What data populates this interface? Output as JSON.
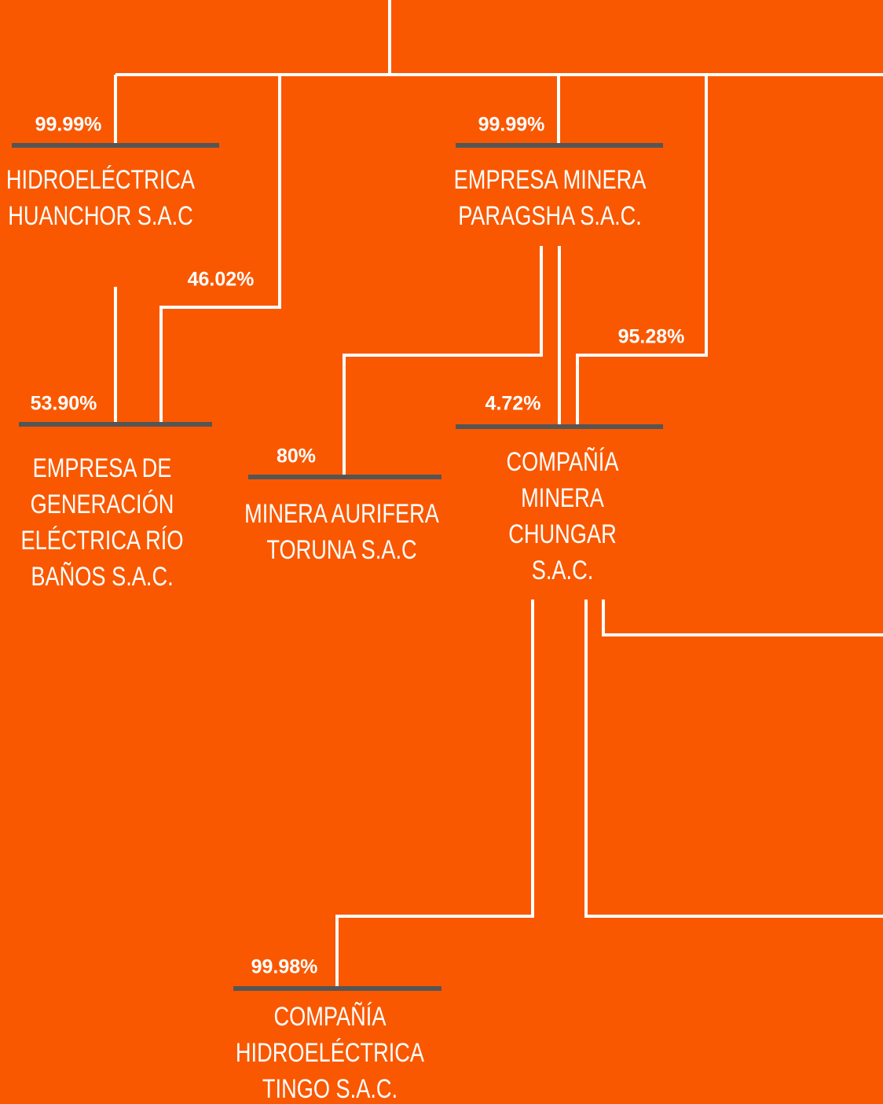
{
  "nodes": [
    {
      "pcts": [
        "99.99%"
      ],
      "label": [
        "HIDROELÉCTRICA",
        "HUANCHOR S.A.C"
      ]
    },
    {
      "pcts": [
        "99.99%"
      ],
      "label": [
        "EMPRESA MINERA",
        "PARAGSHA S.A.C."
      ]
    },
    {
      "pcts": [
        "53.90%",
        "46.02%"
      ],
      "label": [
        "EMPRESA DE",
        "GENERACIÓN",
        "ELÉCTRICA RÍO",
        "BAÑOS S.A.C."
      ]
    },
    {
      "pcts": [
        "80%"
      ],
      "label": [
        "MINERA AURIFERA",
        "TORUNA S.A.C"
      ]
    },
    {
      "pcts": [
        "4.72%",
        "95.28%"
      ],
      "label": [
        "COMPAÑÍA",
        "MINERA",
        "CHUNGAR",
        "S.A.C."
      ]
    },
    {
      "pcts": [
        "99.98%"
      ],
      "label": [
        "COMPAÑÍA",
        "HIDROELÉCTRICA",
        "TINGO S.A.C."
      ]
    }
  ]
}
